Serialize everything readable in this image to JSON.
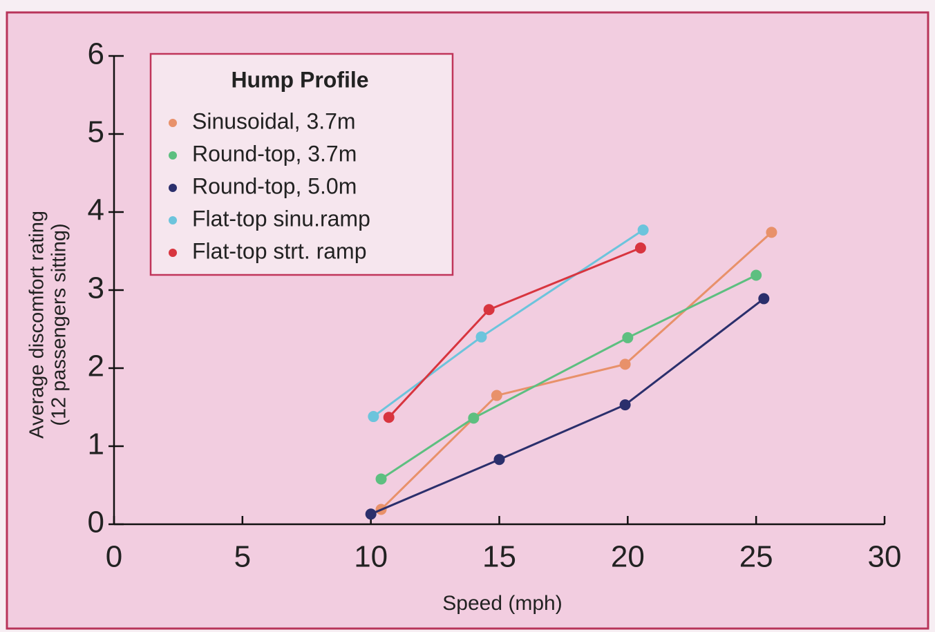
{
  "chart_data": {
    "type": "line",
    "x_label": "Speed (mph)",
    "y_label": [
      "Average discomfort rating",
      "(12 passengers sitting)"
    ],
    "legend_title": "Hump Profile",
    "legend": "upper left",
    "xlim": [
      0,
      30
    ],
    "ylim": [
      0,
      6
    ],
    "xticks": [
      0,
      5,
      10,
      15,
      20,
      25,
      30
    ],
    "yticks": [
      0,
      1,
      2,
      3,
      4,
      5,
      6
    ],
    "series": [
      {
        "name": "Sinusoidal, 3.7m",
        "color": "#e8916a",
        "x": [
          10.4,
          14.9,
          19.9,
          25.6
        ],
        "values": [
          0.19,
          1.65,
          2.05,
          3.74
        ]
      },
      {
        "name": "Round-top, 3.7m",
        "color": "#5dbf80",
        "x": [
          10.4,
          14.0,
          20.0,
          25.0
        ],
        "values": [
          0.58,
          1.36,
          2.39,
          3.19
        ]
      },
      {
        "name": "Round-top, 5.0m",
        "color": "#2b2f6c",
        "x": [
          10.0,
          15.0,
          19.9,
          25.3
        ],
        "values": [
          0.13,
          0.83,
          1.53,
          2.89
        ]
      },
      {
        "name": "Flat-top sinu.ramp",
        "color": "#6cc4dc",
        "x": [
          10.1,
          14.3,
          20.6
        ],
        "values": [
          1.38,
          2.4,
          3.77
        ]
      },
      {
        "name": "Flat-top strt. ramp",
        "color": "#d8353f",
        "x": [
          10.7,
          14.6,
          20.5
        ],
        "values": [
          1.37,
          2.75,
          3.54
        ]
      }
    ]
  }
}
